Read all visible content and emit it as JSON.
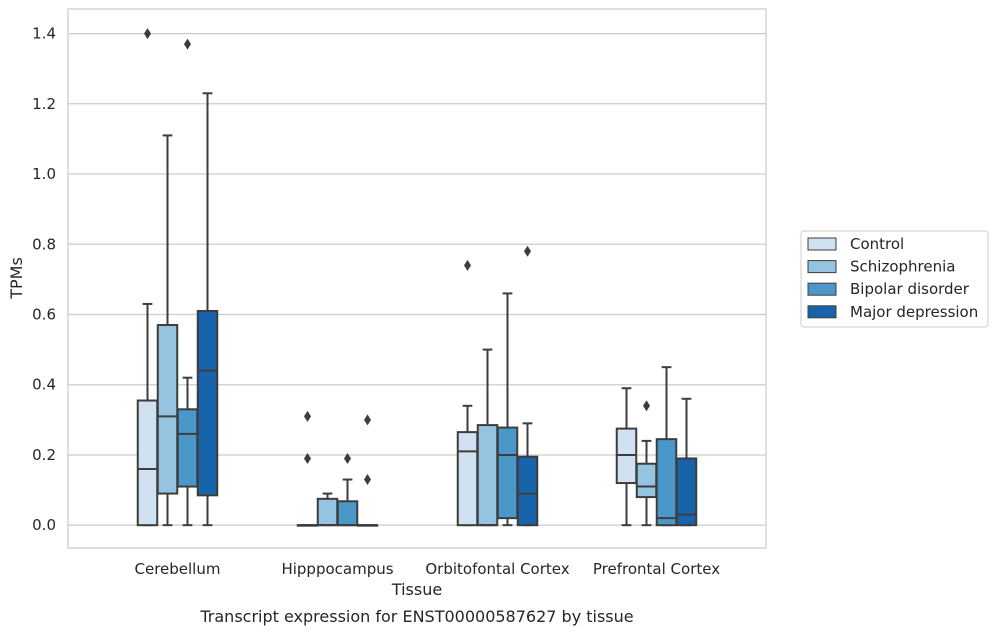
{
  "chart_data": {
    "type": "box",
    "caption": "Transcript expression for ENST00000587627 by tissue",
    "xlabel": "Tissue",
    "ylabel": "TPMs",
    "ylim": [
      -0.065,
      1.47
    ],
    "yticks": [
      0.0,
      0.2,
      0.4,
      0.6,
      0.8,
      1.0,
      1.2,
      1.4
    ],
    "ytick_labels": [
      "0.0",
      "0.2",
      "0.4",
      "0.6",
      "0.8",
      "1.0",
      "1.2",
      "1.4"
    ],
    "grid": true,
    "legend_position": "right",
    "categories": [
      "Cerebellum",
      "Hipppocampus",
      "Orbitofontal Cortex",
      "Prefrontal Cortex"
    ],
    "series": [
      {
        "name": "Control",
        "color": "#d0e1f2",
        "boxes": [
          {
            "whislo": 0.0,
            "q1": 0.0,
            "med": 0.16,
            "q3": 0.355,
            "whishi": 0.63,
            "fliers": [
              1.4
            ]
          },
          {
            "whislo": 0.0,
            "q1": 0.0,
            "med": 0.0,
            "q3": 0.0,
            "whishi": 0.0,
            "fliers": [
              0.19,
              0.31
            ]
          },
          {
            "whislo": 0.0,
            "q1": 0.0,
            "med": 0.21,
            "q3": 0.265,
            "whishi": 0.34,
            "fliers": [
              0.74
            ]
          },
          {
            "whislo": 0.0,
            "q1": 0.12,
            "med": 0.2,
            "q3": 0.275,
            "whishi": 0.39,
            "fliers": []
          }
        ]
      },
      {
        "name": "Schizophrenia",
        "color": "#94c4df",
        "boxes": [
          {
            "whislo": 0.0,
            "q1": 0.09,
            "med": 0.31,
            "q3": 0.57,
            "whishi": 1.11,
            "fliers": []
          },
          {
            "whislo": 0.0,
            "q1": 0.0,
            "med": 0.0,
            "q3": 0.075,
            "whishi": 0.09,
            "fliers": []
          },
          {
            "whislo": 0.0,
            "q1": 0.0,
            "med": 0.0,
            "q3": 0.285,
            "whishi": 0.5,
            "fliers": []
          },
          {
            "whislo": 0.0,
            "q1": 0.08,
            "med": 0.11,
            "q3": 0.175,
            "whishi": 0.24,
            "fliers": [
              0.34
            ]
          }
        ]
      },
      {
        "name": "Bipolar disorder",
        "color": "#4a98c9",
        "boxes": [
          {
            "whislo": 0.0,
            "q1": 0.11,
            "med": 0.26,
            "q3": 0.33,
            "whishi": 0.42,
            "fliers": [
              1.37
            ]
          },
          {
            "whislo": 0.0,
            "q1": 0.0,
            "med": 0.0,
            "q3": 0.068,
            "whishi": 0.13,
            "fliers": [
              0.19
            ]
          },
          {
            "whislo": 0.0,
            "q1": 0.02,
            "med": 0.2,
            "q3": 0.278,
            "whishi": 0.66,
            "fliers": []
          },
          {
            "whislo": 0.0,
            "q1": 0.0,
            "med": 0.02,
            "q3": 0.245,
            "whishi": 0.45,
            "fliers": []
          }
        ]
      },
      {
        "name": "Major depression",
        "color": "#1764ab",
        "boxes": [
          {
            "whislo": 0.0,
            "q1": 0.085,
            "med": 0.44,
            "q3": 0.61,
            "whishi": 1.23,
            "fliers": []
          },
          {
            "whislo": 0.0,
            "q1": 0.0,
            "med": 0.0,
            "q3": 0.0,
            "whishi": 0.0,
            "fliers": [
              0.13,
              0.3
            ]
          },
          {
            "whislo": 0.0,
            "q1": 0.0,
            "med": 0.09,
            "q3": 0.195,
            "whishi": 0.29,
            "fliers": [
              0.78
            ]
          },
          {
            "whislo": 0.0,
            "q1": 0.0,
            "med": 0.03,
            "q3": 0.19,
            "whishi": 0.36,
            "fliers": []
          }
        ]
      }
    ]
  }
}
